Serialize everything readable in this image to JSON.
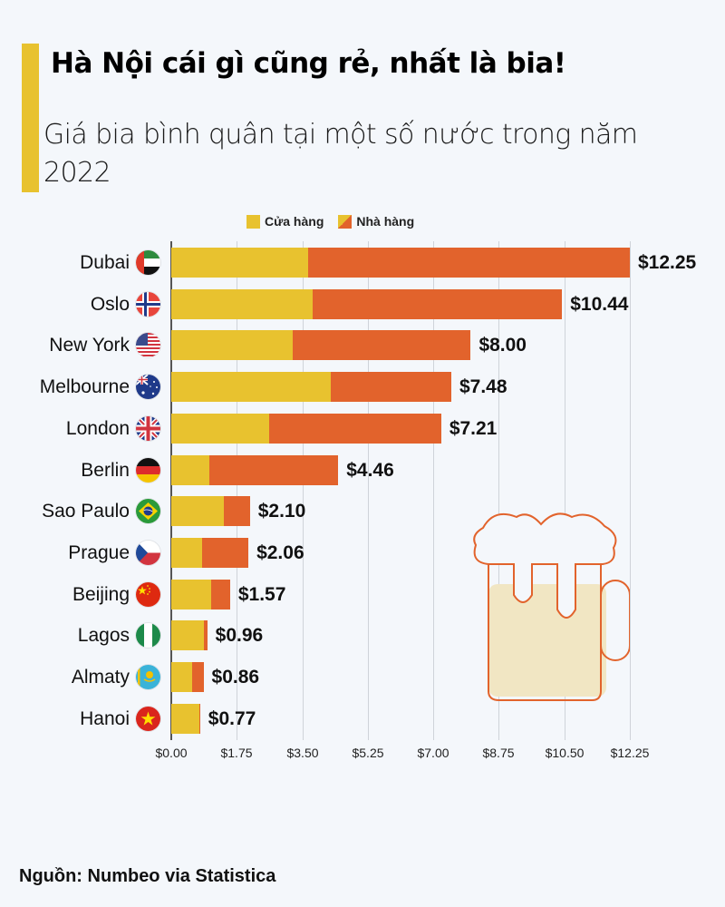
{
  "header": {
    "title": "Hà Nội cái gì cũng rẻ, nhất là bia!",
    "subtitle": "Giá bia bình quân tại một số nước trong năm 2022"
  },
  "colors": {
    "store": "#e8c22f",
    "restaurant": "#e2632c",
    "background": "#f4f7fb",
    "accent": "#e8c22f"
  },
  "legend": {
    "store_label": "Cửa hàng",
    "restaurant_label": "Nhà hàng"
  },
  "footer": {
    "source": "Nguồn: Numbeo via Statistica"
  },
  "chart_data": {
    "type": "bar",
    "orientation": "horizontal",
    "title": "Hà Nội cái gì cũng rẻ, nhất là bia!",
    "subtitle": "Giá bia bình quân tại một số nước trong năm 2022",
    "xlabel": "",
    "ylabel": "",
    "xlim": [
      0,
      12.25
    ],
    "x_ticks": [
      "$0.00",
      "$1.75",
      "$3.50",
      "$5.25",
      "$7.00",
      "$8.75",
      "$10.50",
      "$12.25"
    ],
    "x_tick_values": [
      0,
      1.75,
      3.5,
      5.25,
      7.0,
      8.75,
      10.5,
      12.25
    ],
    "grid": true,
    "legend_position": "top",
    "categories": [
      "Dubai",
      "Oslo",
      "New York",
      "Melbourne",
      "London",
      "Berlin",
      "Sao Paulo",
      "Prague",
      "Beijing",
      "Lagos",
      "Almaty",
      "Hanoi"
    ],
    "series": [
      {
        "name": "Cửa hàng",
        "values": [
          3.65,
          3.77,
          3.24,
          4.25,
          2.61,
          1.01,
          1.4,
          0.82,
          1.06,
          0.87,
          0.56,
          0.75
        ]
      },
      {
        "name": "Nhà hàng",
        "values": [
          12.25,
          10.44,
          8.0,
          7.48,
          7.21,
          4.46,
          2.1,
          2.06,
          1.57,
          0.96,
          0.86,
          0.77
        ]
      }
    ],
    "data_labels": [
      "$12.25",
      "$10.44",
      "$8.00",
      "$7.48",
      "$7.21",
      "$4.46",
      "$2.10",
      "$2.06",
      "$1.57",
      "$0.96",
      "$0.86",
      "$0.77"
    ],
    "flags": [
      "uae-flag",
      "norway-flag",
      "usa-flag",
      "australia-flag",
      "uk-flag",
      "germany-flag",
      "brazil-flag",
      "czech-flag",
      "china-flag",
      "nigeria-flag",
      "kazakhstan-flag",
      "vietnam-flag"
    ]
  }
}
